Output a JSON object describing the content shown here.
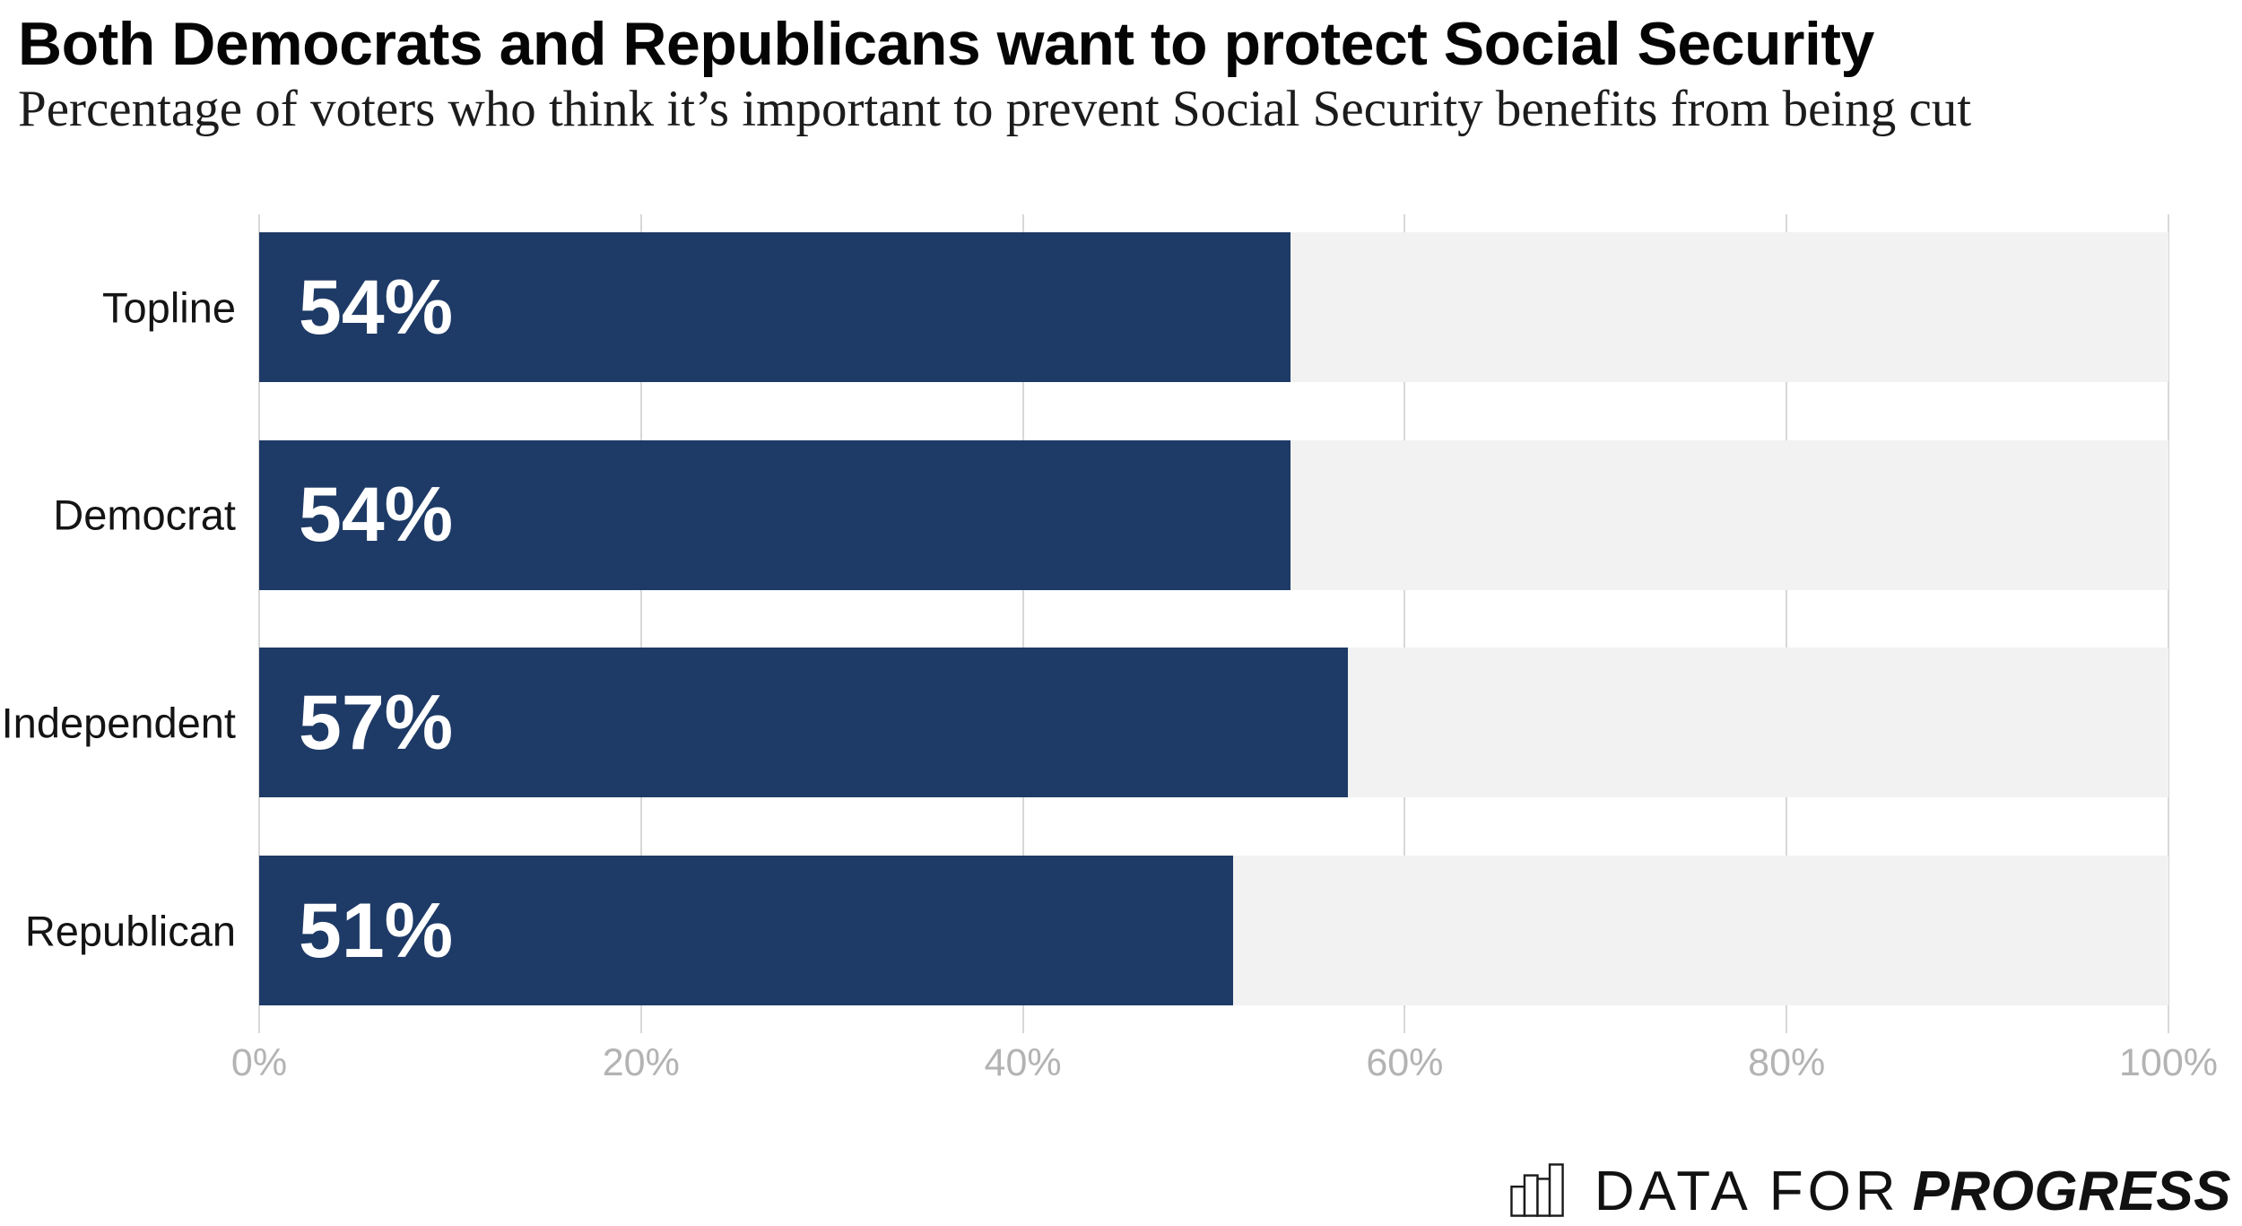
{
  "header": {
    "title": "Both Democrats and Republicans want to protect Social Security",
    "subtitle": "Percentage of voters who think it’s important to prevent Social Security benefits from being cut"
  },
  "chart_data": {
    "type": "bar",
    "orientation": "horizontal",
    "title": "Both Democrats and Republicans want to protect Social Security",
    "subtitle": "Percentage of voters who think it’s important to prevent Social Security benefits from being cut",
    "categories": [
      "Topline",
      "Democrat",
      "Independent",
      "Republican"
    ],
    "values": [
      54,
      54,
      57,
      51
    ],
    "value_labels": [
      "54%",
      "54%",
      "57%",
      "51%"
    ],
    "x_ticks": [
      "0%",
      "20%",
      "40%",
      "60%",
      "80%",
      "100%"
    ],
    "xlim": [
      0,
      100
    ],
    "grid": "vertical-gridlines-behind-tracks",
    "legend": "none",
    "colors": {
      "bar": "#1e3a66",
      "track": "#f2f2f2",
      "gridline": "#d8d8d8",
      "value_label": "#ffffff",
      "category_label": "#141414",
      "tick_label": "#b3b3b3"
    }
  },
  "footer": {
    "logo_light": "DATA FOR",
    "logo_bold": "PROGRESS",
    "logo_icon": "bar-chart-icon"
  }
}
